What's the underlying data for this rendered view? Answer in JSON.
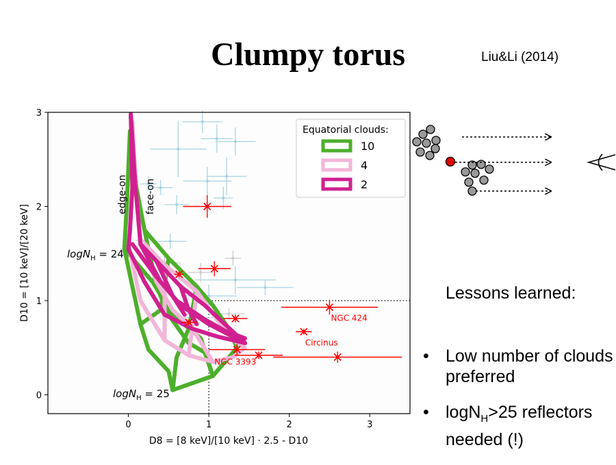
{
  "slide": {
    "title": "Clumpy torus",
    "reference": "Liu&Li (2014)",
    "lessons_heading": "Lessons learned:",
    "bullet_char": "•",
    "bullets": [
      {
        "text": "Low number of clouds preferred"
      },
      {
        "pre": "logN",
        "sub": "H",
        "post": ">25 reflectors needed (!)"
      }
    ]
  },
  "chart_data": {
    "type": "scatter",
    "xlabel": "D8 = [8 keV]/[10 keV] · 2.5 - D10",
    "ylabel": "D10 = [10 keV]/[20 keV]",
    "xlim": [
      -1.0,
      3.5
    ],
    "ylim": [
      -0.2,
      3.0
    ],
    "x_ticks": [
      "0",
      "1",
      "2",
      "3"
    ],
    "y_ticks": [
      "0",
      "1",
      "2",
      "3"
    ],
    "legend": {
      "title": "Equatorial clouds:",
      "placement": "top-right",
      "entries": [
        {
          "label": "10",
          "color": "#4daf2b"
        },
        {
          "label": "4",
          "color": "#f2b6d9"
        },
        {
          "label": "2",
          "color": "#d0208f"
        }
      ]
    },
    "annotations": [
      {
        "text": "edge-on",
        "rotated": true
      },
      {
        "text": "face-on",
        "rotated": true
      },
      {
        "text": "logN",
        "sub": "H",
        "suffix": " = 24"
      },
      {
        "text": "logN",
        "sub": "H",
        "suffix": " = 25"
      }
    ],
    "colors": {
      "highlight": "#ff0000",
      "background_points": "#a9d3e6",
      "grey_points": "#cccccc"
    },
    "highlight_points": [
      {
        "label": "NGC 424",
        "x": 2.5,
        "y": 0.93,
        "xerr": 0.6,
        "yerr": 0.08
      },
      {
        "label": "Circinus",
        "x": 2.18,
        "y": 0.67,
        "xerr": 0.1,
        "yerr": 0.03
      },
      {
        "label": "NGC 3393",
        "x": 1.35,
        "y": 0.48,
        "xerr": 0.35,
        "yerr": 0.06
      },
      {
        "label": "",
        "x": 2.6,
        "y": 0.4,
        "xerr": 0.8,
        "yerr": 0.06
      },
      {
        "label": "",
        "x": 1.62,
        "y": 0.42,
        "xerr": 0.3,
        "yerr": 0.04
      },
      {
        "label": "",
        "x": 0.98,
        "y": 2.0,
        "xerr": 0.3,
        "yerr": 0.12
      },
      {
        "label": "",
        "x": 1.07,
        "y": 1.34,
        "xerr": 0.2,
        "yerr": 0.08
      },
      {
        "label": "",
        "x": 0.63,
        "y": 1.28,
        "xerr": 0.06,
        "yerr": 0.03
      },
      {
        "label": "",
        "x": 0.75,
        "y": 0.77,
        "xerr": 0.1,
        "yerr": 0.03
      },
      {
        "label": "",
        "x": 1.33,
        "y": 0.81,
        "xerr": 0.15,
        "yerr": 0.04
      }
    ],
    "background_points": [
      {
        "x": 0.92,
        "y": 2.9,
        "xerr": 0.25,
        "yerr": 0.12
      },
      {
        "x": 1.1,
        "y": 2.72,
        "xerr": 0.2,
        "yerr": 0.15
      },
      {
        "x": 1.33,
        "y": 2.69,
        "xerr": 0.25,
        "yerr": 0.15
      },
      {
        "x": 0.62,
        "y": 2.61,
        "xerr": 0.35,
        "yerr": 0.3
      },
      {
        "x": 0.98,
        "y": 2.27,
        "xerr": 0.3,
        "yerr": 0.15
      },
      {
        "x": 1.22,
        "y": 2.32,
        "xerr": 0.25,
        "yerr": 0.2
      },
      {
        "x": 0.4,
        "y": 2.2,
        "xerr": 0.15,
        "yerr": 0.08
      },
      {
        "x": 0.25,
        "y": 2.24,
        "xerr": 0.1,
        "yerr": 0.08
      },
      {
        "x": 1.18,
        "y": 2.09,
        "xerr": 0.12,
        "yerr": 0.12
      },
      {
        "x": 0.6,
        "y": 2.02,
        "xerr": 0.15,
        "yerr": 0.1
      },
      {
        "x": 0.52,
        "y": 1.63,
        "xerr": 0.2,
        "yerr": 0.08
      },
      {
        "x": 0.15,
        "y": 1.64,
        "xerr": 0.06,
        "yerr": 0.05
      },
      {
        "x": 1.33,
        "y": 1.22,
        "xerr": 0.5,
        "yerr": 0.15
      },
      {
        "x": 1.7,
        "y": 1.14,
        "xerr": 0.35,
        "yerr": 0.08
      },
      {
        "x": 1.0,
        "y": 1.05,
        "xerr": 0.35,
        "yerr": 0.12
      },
      {
        "x": 0.8,
        "y": 0.82,
        "xerr": 0.25,
        "yerr": 0.2
      }
    ],
    "grey_points": [
      {
        "x": 0.45,
        "y": 1.4,
        "xerr": 0.2,
        "yerr": 0.1
      },
      {
        "x": 0.9,
        "y": 1.3,
        "xerr": 0.15,
        "yerr": 0.1
      },
      {
        "x": 1.3,
        "y": 1.45,
        "xerr": 0.1,
        "yerr": 0.08
      },
      {
        "x": 1.25,
        "y": 0.86,
        "xerr": 0.2,
        "yerr": 0.06
      }
    ],
    "reference_lines": [
      {
        "orientation": "horizontal",
        "value": 1.0,
        "from": 1.0,
        "to": 3.5
      },
      {
        "orientation": "vertical",
        "value": 1.0,
        "from": -0.2,
        "to": 1.0
      }
    ],
    "series": [
      {
        "name": "10",
        "color": "#4daf2b",
        "width": 6,
        "curves": [
          [
            [
              0.03,
              2.95
            ],
            [
              0.1,
              2.2
            ],
            [
              0.2,
              1.75
            ],
            [
              0.5,
              1.45
            ],
            [
              0.85,
              1.15
            ],
            [
              1.05,
              0.95
            ],
            [
              1.25,
              0.7
            ],
            [
              1.35,
              0.5
            ]
          ],
          [
            [
              0.02,
              2.8
            ],
            [
              -0.02,
              2.0
            ],
            [
              -0.05,
              1.55
            ],
            [
              0.15,
              0.75
            ],
            [
              0.25,
              0.48
            ],
            [
              0.5,
              0.25
            ],
            [
              0.55,
              0.05
            ],
            [
              1.05,
              0.2
            ],
            [
              1.35,
              0.5
            ]
          ],
          [
            [
              -0.05,
              1.55
            ],
            [
              0.3,
              1.2
            ],
            [
              0.55,
              0.85
            ],
            [
              0.9,
              0.6
            ],
            [
              1.05,
              0.2
            ]
          ],
          [
            [
              0.2,
              1.75
            ],
            [
              0.35,
              1.15
            ],
            [
              0.5,
              0.85
            ],
            [
              0.75,
              0.55
            ],
            [
              0.95,
              0.45
            ],
            [
              1.05,
              0.2
            ]
          ],
          [
            [
              0.85,
              1.15
            ],
            [
              0.75,
              0.7
            ],
            [
              0.6,
              0.4
            ],
            [
              0.55,
              0.05
            ]
          ],
          [
            [
              0.5,
              1.45
            ],
            [
              0.4,
              0.9
            ],
            [
              0.15,
              0.75
            ]
          ]
        ]
      },
      {
        "name": "4",
        "color": "#f2b6d9",
        "width": 6,
        "curves": [
          [
            [
              0.05,
              2.9
            ],
            [
              0.1,
              2.1
            ],
            [
              0.15,
              1.65
            ],
            [
              0.45,
              1.38
            ],
            [
              0.85,
              1.1
            ],
            [
              1.1,
              0.8
            ],
            [
              1.35,
              0.55
            ],
            [
              1.45,
              0.5
            ]
          ],
          [
            [
              0.0,
              1.6
            ],
            [
              0.15,
              1.0
            ],
            [
              0.45,
              0.58
            ],
            [
              0.75,
              0.42
            ],
            [
              1.05,
              0.35
            ],
            [
              1.3,
              0.4
            ],
            [
              1.45,
              0.5
            ]
          ],
          [
            [
              0.15,
              1.65
            ],
            [
              0.35,
              1.2
            ],
            [
              0.55,
              0.9
            ],
            [
              0.8,
              0.7
            ],
            [
              1.05,
              0.35
            ]
          ],
          [
            [
              0.45,
              1.38
            ],
            [
              0.45,
              0.95
            ],
            [
              0.45,
              0.58
            ]
          ],
          [
            [
              0.85,
              1.1
            ],
            [
              0.8,
              0.75
            ],
            [
              0.75,
              0.42
            ]
          ]
        ]
      },
      {
        "name": "2",
        "color": "#d0208f",
        "width": 6,
        "curves": [
          [
            [
              0.03,
              2.98
            ],
            [
              0.08,
              2.3
            ],
            [
              0.15,
              1.6
            ],
            [
              0.35,
              1.42
            ],
            [
              0.65,
              1.15
            ],
            [
              0.95,
              0.95
            ],
            [
              1.2,
              0.75
            ],
            [
              1.45,
              0.55
            ]
          ],
          [
            [
              0.03,
              2.98
            ],
            [
              0.05,
              2.2
            ],
            [
              0.02,
              1.75
            ],
            [
              0.0,
              1.55
            ],
            [
              0.2,
              1.2
            ],
            [
              0.45,
              0.85
            ],
            [
              0.8,
              0.7
            ],
            [
              1.1,
              0.62
            ],
            [
              1.45,
              0.55
            ]
          ],
          [
            [
              0.05,
              1.6
            ],
            [
              0.35,
              1.25
            ],
            [
              0.6,
              1.0
            ],
            [
              0.95,
              0.8
            ],
            [
              1.2,
              0.68
            ],
            [
              1.45,
              0.6
            ]
          ],
          [
            [
              0.15,
              1.6
            ],
            [
              0.4,
              1.2
            ],
            [
              0.65,
              0.95
            ],
            [
              1.0,
              0.75
            ],
            [
              1.45,
              0.55
            ]
          ],
          [
            [
              0.35,
              1.42
            ],
            [
              0.55,
              1.05
            ],
            [
              0.7,
              0.85
            ]
          ],
          [
            [
              0.65,
              1.15
            ],
            [
              0.75,
              0.9
            ],
            [
              0.85,
              0.75
            ]
          ]
        ]
      }
    ]
  }
}
